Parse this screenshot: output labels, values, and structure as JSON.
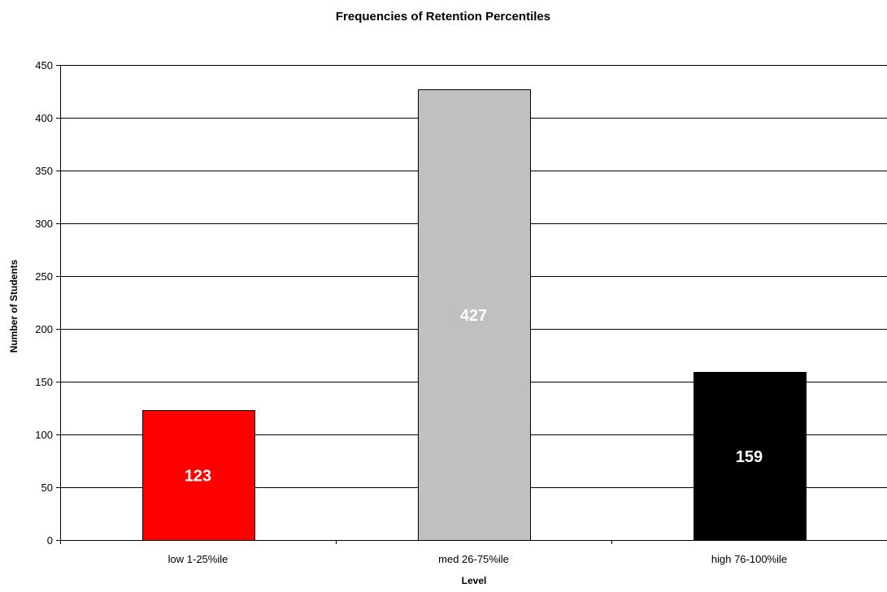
{
  "chart_data": {
    "type": "bar",
    "title": "Frequencies of Retention Percentiles",
    "xlabel": "Level",
    "ylabel": "Number of Students",
    "categories": [
      "low 1-25%ile",
      "med 26-75%ile",
      "high 76-100%ile"
    ],
    "values": [
      123,
      427,
      159
    ],
    "data_labels": [
      "123",
      "427",
      "159"
    ],
    "bar_colors": [
      "#ff0000",
      "#c0c0c0",
      "#000000"
    ],
    "ylim": [
      0,
      450
    ],
    "yticks": [
      0,
      50,
      100,
      150,
      200,
      250,
      300,
      350,
      400,
      450
    ],
    "grid": true,
    "legend": "none"
  }
}
